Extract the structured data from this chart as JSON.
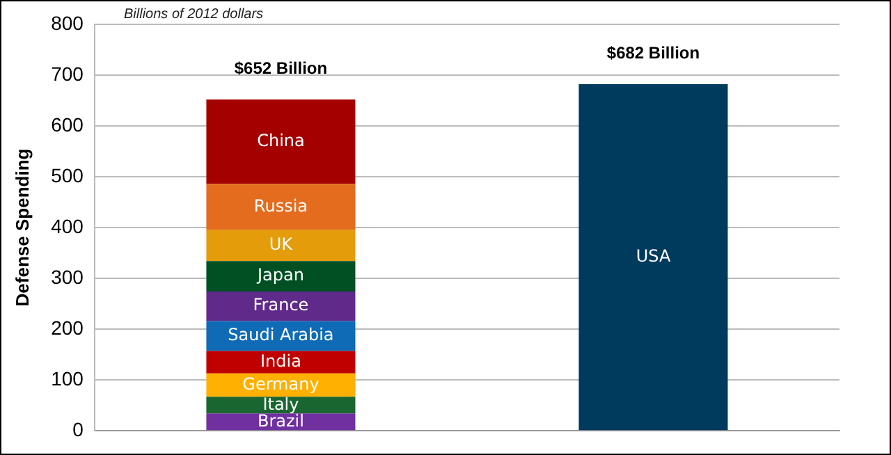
{
  "chart_data": {
    "type": "bar",
    "stacked": true,
    "categories": [
      null,
      null
    ],
    "ylabel": "Defense Spending",
    "annotations": [
      "Billions of 2012 dollars"
    ],
    "ylim": [
      0,
      800
    ],
    "yticks": [
      0,
      100,
      200,
      300,
      400,
      500,
      600,
      700,
      800
    ],
    "grid": "y",
    "legend": false,
    "tick_labels": "y",
    "totals": [
      "$652 Billion",
      "$682 Billion"
    ],
    "series": [
      {
        "name": "Brazil",
        "color": "#7030a0",
        "values": [
          34,
          null
        ]
      },
      {
        "name": "Italy",
        "color": "#1a6630",
        "values": [
          33,
          null
        ]
      },
      {
        "name": "Germany",
        "color": "#ffb000",
        "values": [
          46,
          null
        ]
      },
      {
        "name": "India",
        "color": "#c00000",
        "values": [
          44,
          null
        ]
      },
      {
        "name": "Saudi Arabia",
        "color": "#0f6bb5",
        "values": [
          59,
          null
        ]
      },
      {
        "name": "France",
        "color": "#5f2a8a",
        "values": [
          58,
          null
        ]
      },
      {
        "name": "Japan",
        "color": "#005024",
        "values": [
          60,
          null
        ]
      },
      {
        "name": "UK",
        "color": "#e59c0b",
        "values": [
          61,
          null
        ]
      },
      {
        "name": "Russia",
        "color": "#e36c1f",
        "values": [
          91,
          null
        ]
      },
      {
        "name": "China",
        "color": "#a50000",
        "values": [
          166,
          null
        ]
      },
      {
        "name": "USA",
        "color": "#003a5d",
        "values": [
          null,
          682
        ]
      }
    ]
  }
}
